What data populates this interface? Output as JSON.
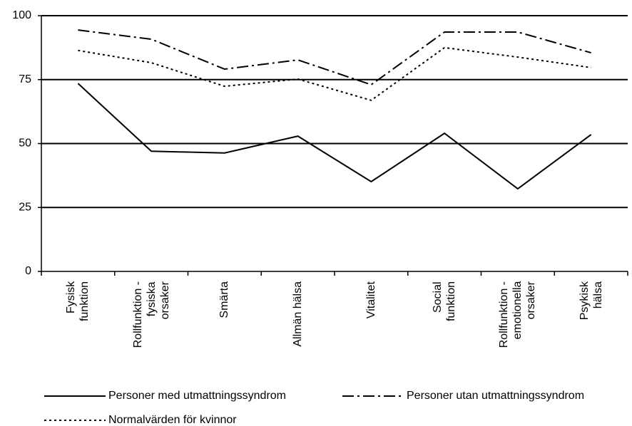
{
  "chart_data": {
    "type": "line",
    "categories": [
      "Fysisk\nfunktion",
      "Rollfunktion -\nfysiska\norsaker",
      "Smärta",
      "Allmän hälsa",
      "Vitalitet",
      "Social\nfunktion",
      "Rollfunktion -\nemotionella\norsaker",
      "Psykisk\nhälsa"
    ],
    "series": [
      {
        "name": "Personer med utmattningssyndrom",
        "color": "#000000",
        "style": "solid",
        "values": [
          73.5,
          47,
          46.3,
          52.9,
          35.1,
          54,
          32.3,
          53.5
        ]
      },
      {
        "name": "Personer utan utmattningssyndrom",
        "color": "#000000",
        "style": "dash-dot",
        "values": [
          94.4,
          90.8,
          79.1,
          82.7,
          73,
          93.6,
          93.6,
          85.5
        ]
      },
      {
        "name": "Normalvärden för kvinnor",
        "color": "#000000",
        "style": "dotted",
        "values": [
          86.4,
          81.6,
          72.4,
          75.2,
          66.9,
          87.5,
          83.8,
          79.7
        ]
      }
    ],
    "ylim": [
      0,
      100
    ],
    "yticks": [
      0,
      25,
      50,
      75,
      100
    ],
    "grid": true
  }
}
